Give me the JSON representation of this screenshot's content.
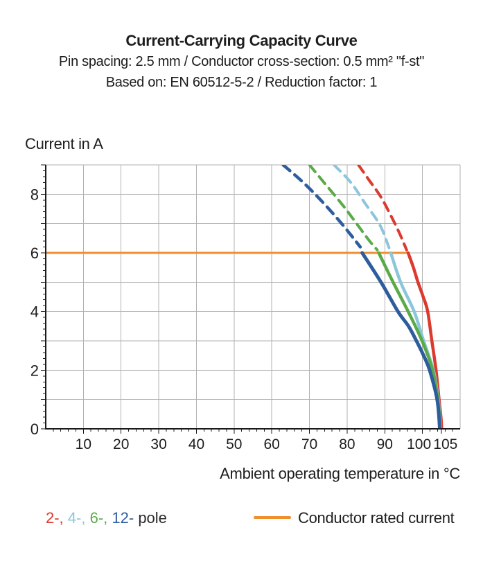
{
  "header": {
    "title": "Current-Carrying Capacity Curve",
    "subtitle1": "Pin spacing: 2.5 mm / Conductor cross-section: 0.5 mm² \"f-st\"",
    "subtitle2": "Based on: EN 60512-5-2 / Reduction factor: 1"
  },
  "chart_data": {
    "type": "line",
    "title": "Current-Carrying Capacity Curve",
    "ylabel": "Current in A",
    "xlabel": "Ambient operating temperature in °C",
    "xlim": [
      0,
      110
    ],
    "ylim": [
      0,
      9
    ],
    "x_gridline_step": 10,
    "y_gridline_step": 1,
    "x_minor_tick_step": 2,
    "y_minor_tick_step": 0.2,
    "x_tick_labels": [
      10,
      20,
      30,
      40,
      50,
      60,
      70,
      80,
      90,
      100,
      105
    ],
    "y_tick_labels": [
      0,
      2,
      4,
      6,
      8
    ],
    "grid_color": "#b2b2b2",
    "spine_color": "#1a1a1a",
    "legend_position": "bottom",
    "rated_current": {
      "value": 6,
      "x_start": 0,
      "x_end": 96.2,
      "color": "#EE8F30",
      "label": "Conductor rated current"
    },
    "series": [
      {
        "name": "2-pole",
        "color": "#DC3A2E",
        "width": 4.5,
        "dashed": [
          [
            83,
            9
          ],
          [
            86,
            8.45
          ],
          [
            89,
            7.9
          ],
          [
            91.5,
            7.3
          ],
          [
            93.8,
            6.7
          ],
          [
            95.8,
            6.1
          ]
        ],
        "solid": [
          [
            96.2,
            6
          ],
          [
            97.6,
            5.5
          ],
          [
            98.8,
            5
          ],
          [
            100.2,
            4.5
          ],
          [
            101.4,
            4
          ],
          [
            102.5,
            3
          ],
          [
            103.6,
            2
          ],
          [
            104.4,
            1
          ],
          [
            104.9,
            0.4
          ],
          [
            105.1,
            0
          ]
        ]
      },
      {
        "name": "4-pole",
        "color": "#8CC6DB",
        "width": 4.5,
        "dashed": [
          [
            76.5,
            9
          ],
          [
            81,
            8.4
          ],
          [
            84.7,
            7.7
          ],
          [
            88.7,
            6.95
          ],
          [
            91.2,
            6.15
          ]
        ],
        "solid": [
          [
            91.6,
            6
          ],
          [
            94.2,
            5
          ],
          [
            97.8,
            4
          ],
          [
            100.3,
            3
          ],
          [
            102.9,
            2
          ],
          [
            104.2,
            1
          ],
          [
            104.85,
            0
          ]
        ]
      },
      {
        "name": "6-pole",
        "color": "#5AAA48",
        "width": 4.5,
        "dashed": [
          [
            70,
            9
          ],
          [
            74.5,
            8.3
          ],
          [
            79,
            7.6
          ],
          [
            82.5,
            7.0
          ],
          [
            86,
            6.4
          ],
          [
            88,
            6.1
          ]
        ],
        "solid": [
          [
            88.4,
            6
          ],
          [
            92.2,
            5
          ],
          [
            96.2,
            4
          ],
          [
            99.9,
            3
          ],
          [
            102.7,
            2
          ],
          [
            104.1,
            1
          ],
          [
            104.75,
            0
          ]
        ]
      },
      {
        "name": "12-pole",
        "color": "#2E5D9E",
        "width": 5,
        "dashed": [
          [
            63,
            9
          ],
          [
            67.5,
            8.5
          ],
          [
            71.5,
            8.0
          ],
          [
            75.5,
            7.45
          ],
          [
            79.5,
            6.85
          ],
          [
            83.5,
            6.2
          ]
        ],
        "solid": [
          [
            84,
            6
          ],
          [
            89,
            5
          ],
          [
            93.5,
            4
          ],
          [
            96.3,
            3.5
          ],
          [
            98.4,
            3
          ],
          [
            100.3,
            2.5
          ],
          [
            101.9,
            2
          ],
          [
            103.9,
            1
          ],
          [
            104.6,
            0
          ]
        ]
      }
    ]
  },
  "legend": {
    "pole_tokens": [
      {
        "text": "2-,",
        "color": "#DC3A2E"
      },
      {
        "text": " 4-,",
        "color": "#8CC6DB"
      },
      {
        "text": " 6-,",
        "color": "#5AAA48"
      },
      {
        "text": " 12-",
        "color": "#2E5D9E"
      },
      {
        "text": " pole",
        "color": "#2b2b2b"
      }
    ],
    "rated_label": "Conductor rated current"
  }
}
